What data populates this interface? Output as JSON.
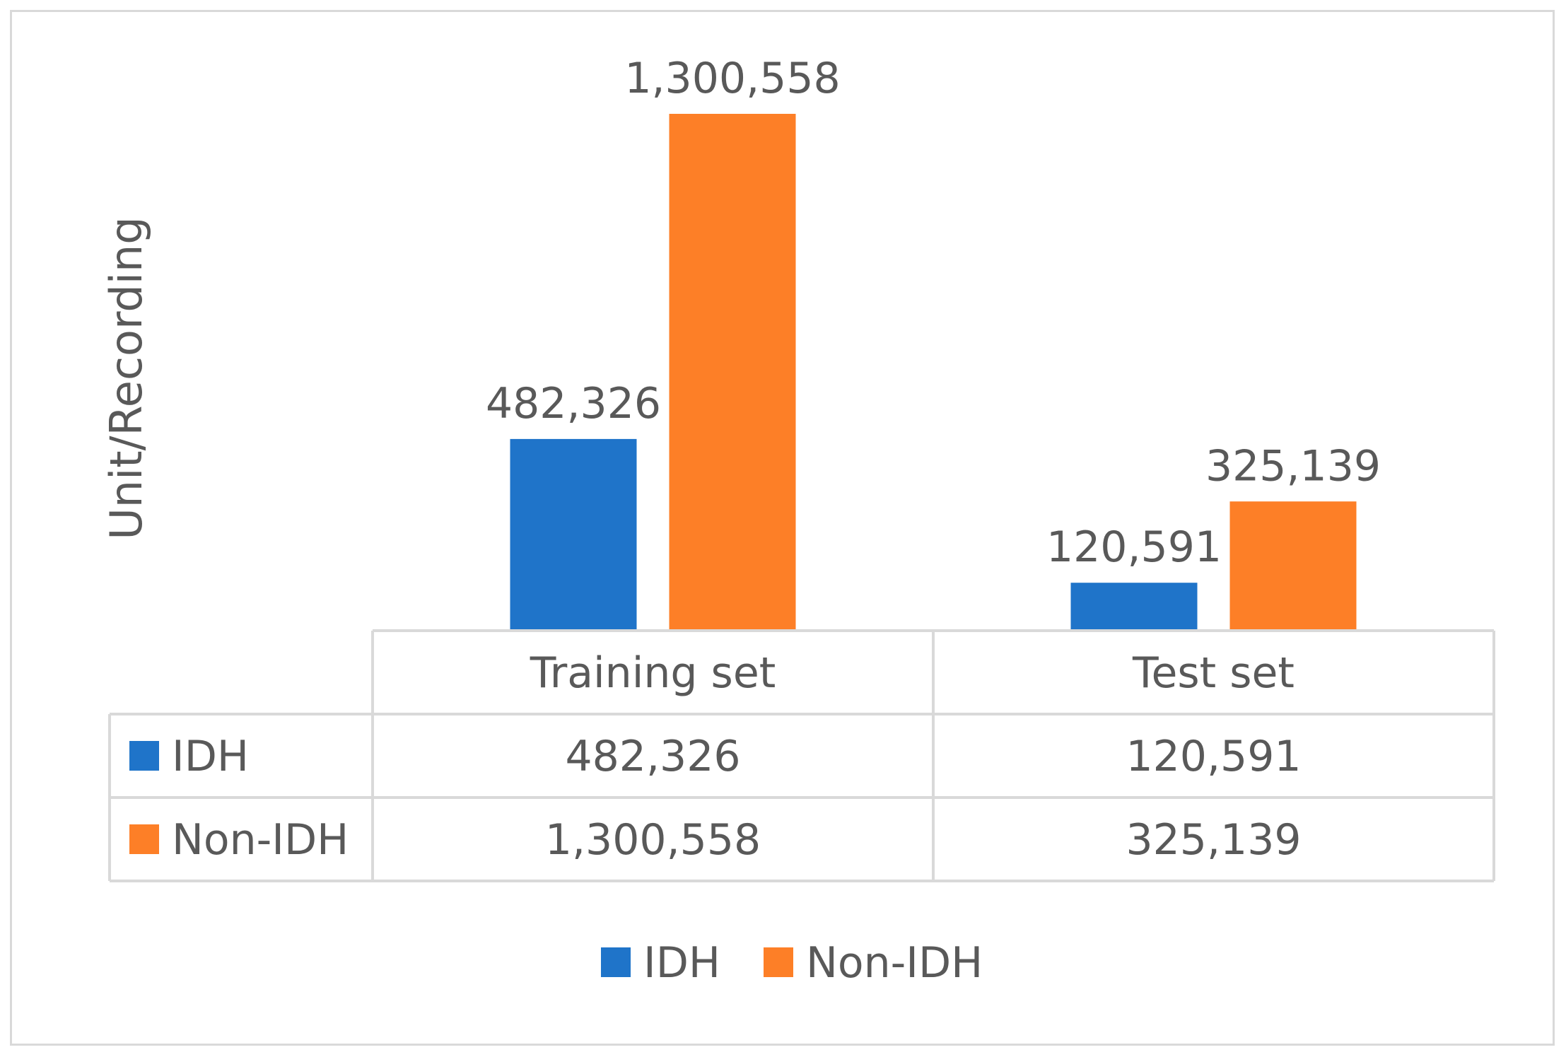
{
  "chart_data": {
    "type": "bar",
    "title": "",
    "xlabel": "",
    "ylabel": "Unit/Recording",
    "categories": [
      "Training set",
      "Test set"
    ],
    "series": [
      {
        "name": "IDH",
        "values": [
          482326,
          120591
        ],
        "labels": [
          "482,326",
          "120,591"
        ],
        "color": "#1f74c9"
      },
      {
        "name": "Non-IDH",
        "values": [
          1300558,
          325139
        ],
        "labels": [
          "1,300,558",
          "325,139"
        ],
        "color": "#fd7f27"
      }
    ],
    "ylim": [
      0,
      1300558
    ],
    "grid": false,
    "data_table": true,
    "legend_position": "bottom"
  }
}
